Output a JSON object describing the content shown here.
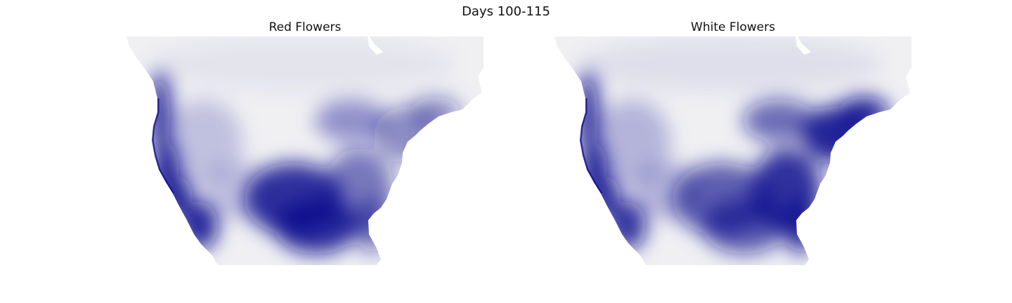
{
  "figure": {
    "suptitle": "Days 100-115"
  },
  "panels": [
    {
      "title": "Red Flowers",
      "colormap": {
        "low": "#f0f0f3",
        "high": "#10108f"
      },
      "density": [
        {
          "region": "pacific-coast",
          "level": 0.95
        },
        {
          "region": "california-central",
          "level": 0.9
        },
        {
          "region": "southern-plains",
          "level": 0.85
        },
        {
          "region": "southeast",
          "level": 0.55
        },
        {
          "region": "northeast",
          "level": 0.45
        },
        {
          "region": "great-lakes",
          "level": 0.4
        },
        {
          "region": "mountain-west",
          "level": 0.2
        },
        {
          "region": "canada",
          "level": 0.05
        }
      ]
    },
    {
      "title": "White Flowers",
      "colormap": {
        "low": "#f0f0f3",
        "high": "#10108f"
      },
      "density": [
        {
          "region": "pacific-coast",
          "level": 0.95
        },
        {
          "region": "california-central",
          "level": 0.85
        },
        {
          "region": "southern-plains",
          "level": 0.65
        },
        {
          "region": "southeast",
          "level": 0.85
        },
        {
          "region": "northeast",
          "level": 0.9
        },
        {
          "region": "great-lakes",
          "level": 0.6
        },
        {
          "region": "mountain-west",
          "level": 0.25
        },
        {
          "region": "canada",
          "level": 0.07
        }
      ]
    }
  ]
}
